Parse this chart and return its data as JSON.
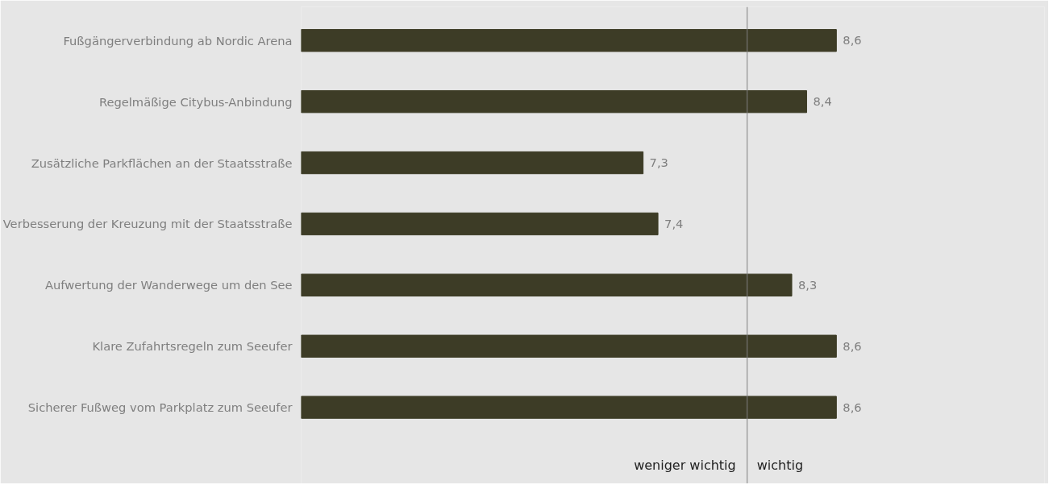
{
  "chart_data": {
    "type": "bar",
    "orientation": "horizontal",
    "categories": [
      "Fußgängerverbindung ab Nordic Arena",
      "Regelmäßige Citybus-Anbindung",
      "Zusätzliche Parkflächen an der Staatsstraße",
      "Verbesserung der Kreuzung mit der Staatsstraße",
      "Aufwertung der Wanderwege um den See",
      "Klare Zufahrtsregeln zum Seeufer",
      "Sicherer Fußweg vom Parkplatz zum Seeufer"
    ],
    "values": [
      8.6,
      8.4,
      7.3,
      7.4,
      8.3,
      8.6,
      8.6
    ],
    "value_labels": [
      "8,6",
      "8,4",
      "7,3",
      "7,4",
      "8,3",
      "8,6",
      "8,6"
    ],
    "color": "#3d3c26",
    "xlim": [
      5,
      10
    ],
    "tick_labels": "y",
    "ref_lines": [
      {
        "axis": "x",
        "value": 8,
        "color": "#7f7f7f"
      }
    ],
    "annotations": [
      "weniger wichtig",
      "wichtig"
    ]
  }
}
